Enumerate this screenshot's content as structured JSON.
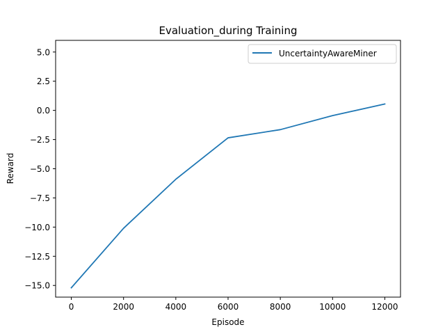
{
  "chart_data": {
    "type": "line",
    "title": "Evaluation_during Training",
    "xlabel": "Episode",
    "ylabel": "Reward",
    "xlim": [
      -600,
      12600
    ],
    "ylim": [
      -16.0,
      6.0
    ],
    "xticks": [
      0,
      2000,
      4000,
      6000,
      8000,
      10000,
      12000
    ],
    "yticks": [
      5.0,
      2.5,
      0.0,
      -2.5,
      -5.0,
      -7.5,
      -10.0,
      -12.5,
      -15.0
    ],
    "xtick_labels": [
      "0",
      "2000",
      "4000",
      "6000",
      "8000",
      "10000",
      "12000"
    ],
    "ytick_labels": [
      "5.0",
      "2.5",
      "0.0",
      "−2.5",
      "−5.0",
      "−7.5",
      "−10.0",
      "−12.5",
      "−15.0"
    ],
    "grid": false,
    "legend": {
      "position": "top-right"
    },
    "series": [
      {
        "name": "UncertaintyAwareMiner",
        "color": "#1f77b4",
        "x": [
          0,
          2000,
          4000,
          6000,
          8000,
          10000,
          12000
        ],
        "y": [
          -15.2,
          -10.1,
          -5.9,
          -2.35,
          -1.65,
          -0.45,
          0.55
        ]
      }
    ]
  }
}
